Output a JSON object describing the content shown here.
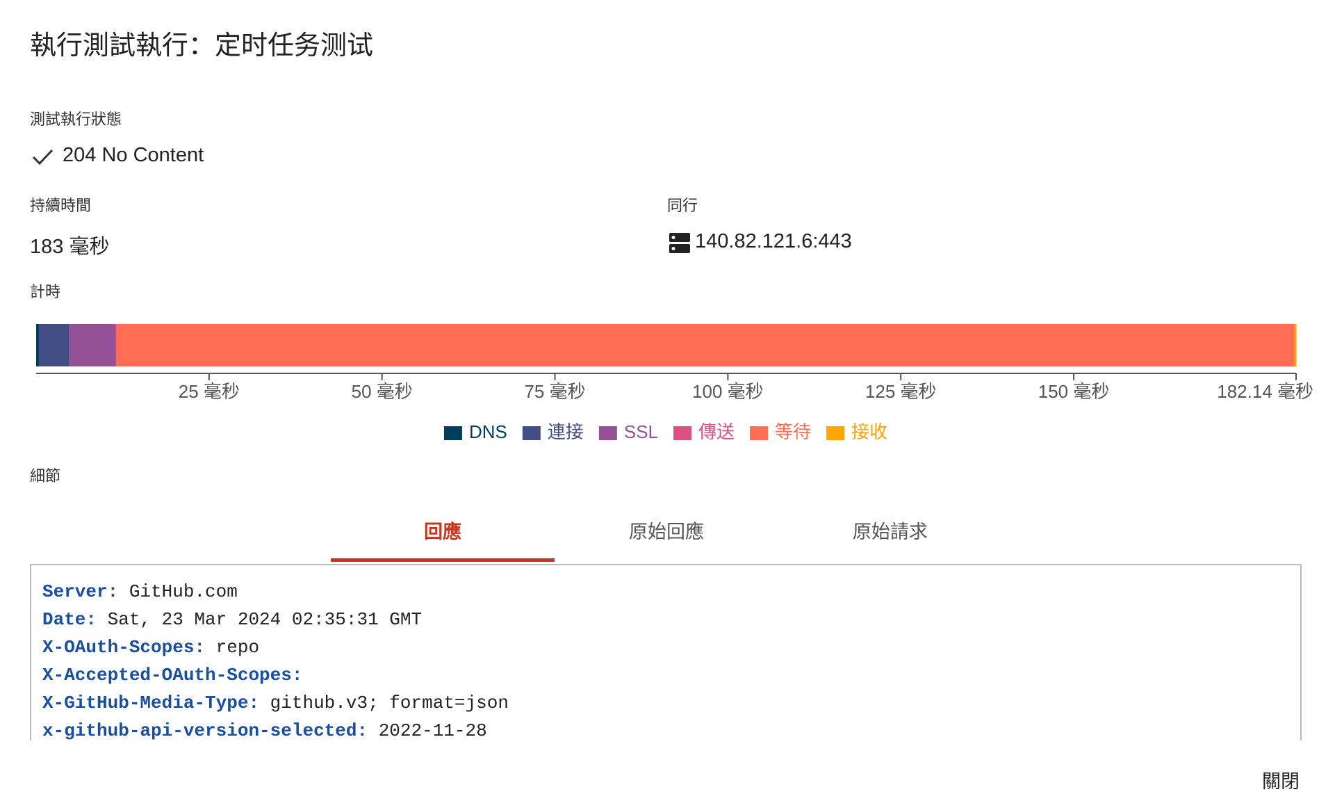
{
  "header": {
    "title": "執行測試執行：定时任务测试"
  },
  "status": {
    "label": "測試執行狀態",
    "value": "204 No Content"
  },
  "duration": {
    "label": "持續時間",
    "value": "183 毫秒"
  },
  "peer": {
    "label": "同行",
    "value": "140.82.121.6:443"
  },
  "chart_data": {
    "type": "bar",
    "orientation": "horizontal",
    "stacked": true,
    "title": "計時",
    "series": [
      {
        "name": "DNS",
        "color": "#003f5c",
        "values": [
          0.4
        ]
      },
      {
        "name": "連接",
        "color": "#444e86",
        "values": [
          4.4
        ]
      },
      {
        "name": "SSL",
        "color": "#955196",
        "values": [
          6.7
        ]
      },
      {
        "name": "傳送",
        "color": "#dd5182",
        "values": [
          0.1
        ]
      },
      {
        "name": "等待",
        "color": "#ff6e54",
        "values": [
          170.3
        ]
      },
      {
        "name": "接收",
        "color": "#ffa600",
        "values": [
          0.3
        ]
      }
    ],
    "xlim": [
      0,
      182.14
    ],
    "xticks": [
      {
        "value": 25,
        "label": "25 毫秒"
      },
      {
        "value": 50,
        "label": "50 毫秒"
      },
      {
        "value": 75,
        "label": "75 毫秒"
      },
      {
        "value": 100,
        "label": "100 毫秒"
      },
      {
        "value": 125,
        "label": "125 毫秒"
      },
      {
        "value": 150,
        "label": "150 毫秒"
      },
      {
        "value": 182.14,
        "label": "182.14 毫秒"
      }
    ],
    "legend": "bottom"
  },
  "details": {
    "label": "細節",
    "tabs": [
      "回應",
      "原始回應",
      "原始請求"
    ],
    "active_tab": 0,
    "headers": [
      {
        "key": "Server:",
        "value": "GitHub.com"
      },
      {
        "key": "Date:",
        "value": "Sat, 23 Mar 2024 02:35:31 GMT"
      },
      {
        "key": "X-OAuth-Scopes:",
        "value": "repo"
      },
      {
        "key": "X-Accepted-OAuth-Scopes:",
        "value": ""
      },
      {
        "key": "X-GitHub-Media-Type:",
        "value": "github.v3; format=json"
      },
      {
        "key": "x-github-api-version-selected:",
        "value": "2022-11-28"
      }
    ]
  },
  "footer": {
    "close": "關閉"
  }
}
